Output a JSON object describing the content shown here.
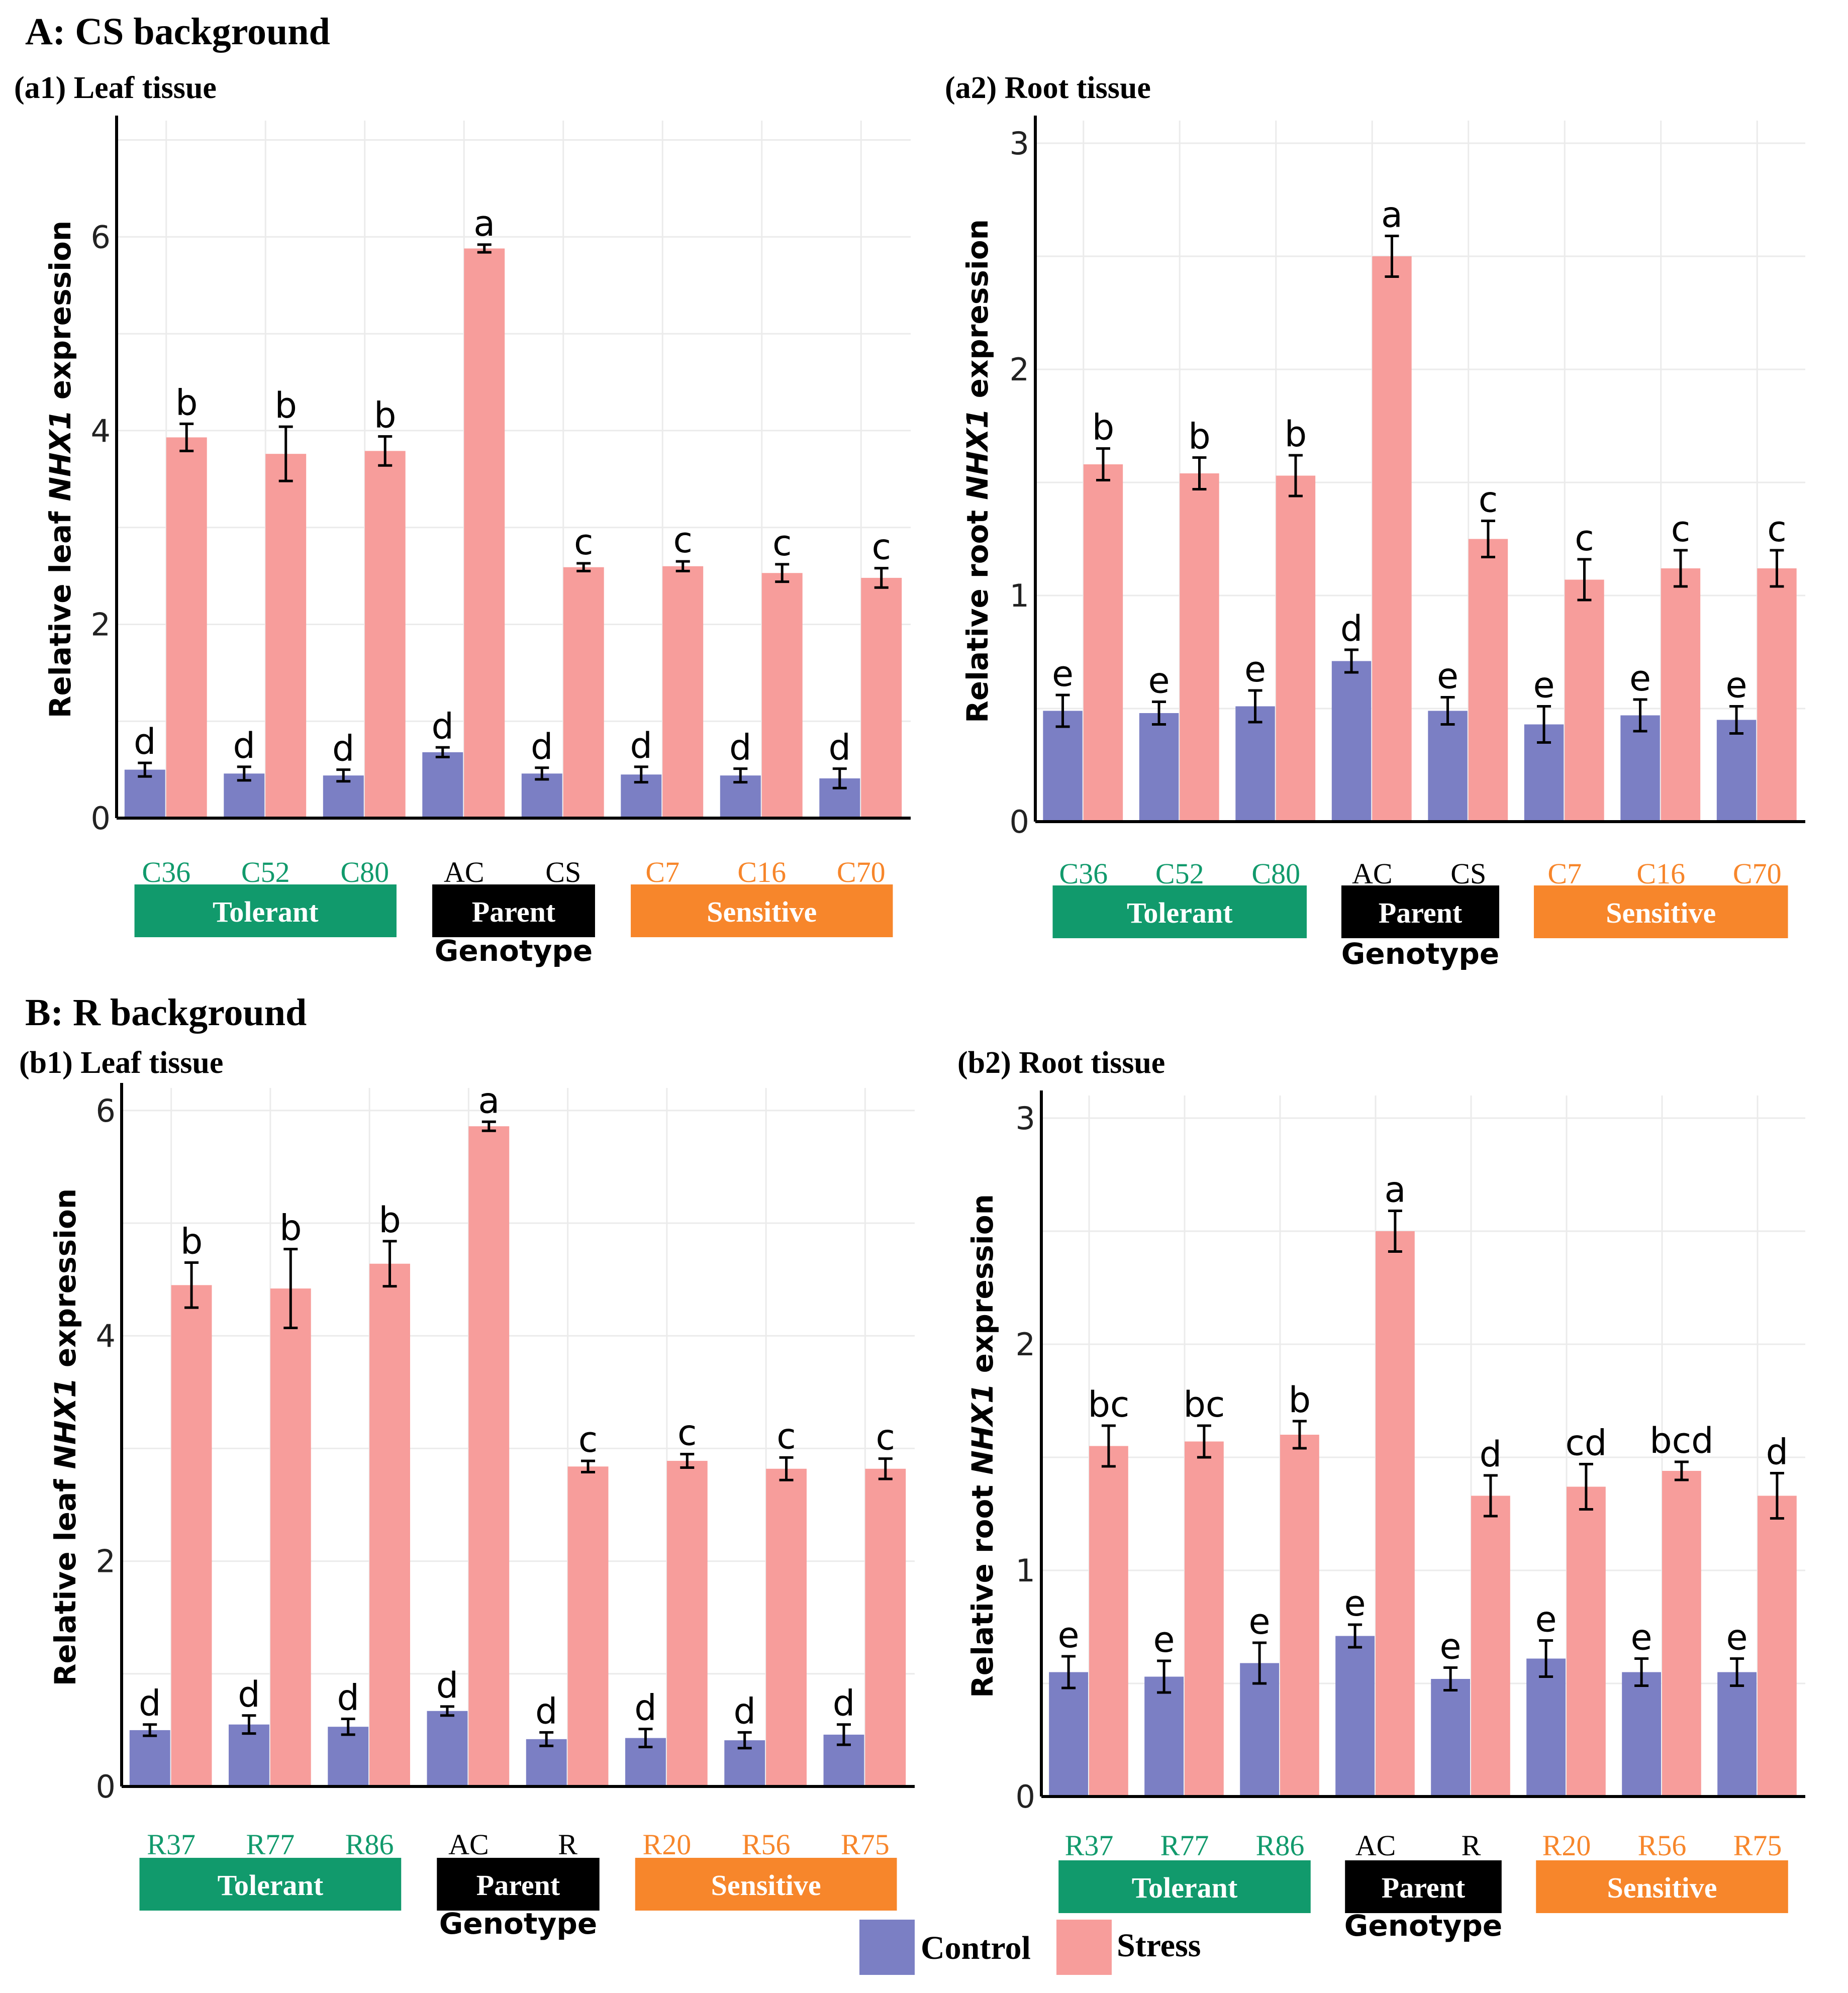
{
  "figure": {
    "section_a_title": "A: CS background",
    "section_b_title": "B: R background",
    "genotype_label": "Genotype",
    "legend": {
      "control_label": "Control",
      "stress_label": "Stress",
      "control_color": "#7b7fc4",
      "stress_color": "#f79d9b"
    },
    "group_colors": {
      "tolerant": "#119a6c",
      "parent": "#000000",
      "sensitive": "#f7862b"
    },
    "group_labels": {
      "tolerant": "Tolerant",
      "parent": "Parent",
      "sensitive": "Sensitive"
    }
  },
  "chart_data": [
    {
      "id": "a1",
      "type": "bar",
      "title": "(a1) Leaf tissue",
      "ylabel_prefix": "Relative leaf ",
      "ylabel_gene": "NHX1",
      "ylabel_suffix": " expression",
      "xlabel": "Genotype",
      "ylim": [
        0,
        7.2
      ],
      "yticks": [
        0,
        2,
        4,
        6
      ],
      "categories": [
        "C36",
        "C52",
        "C80",
        "AC",
        "CS",
        "C7",
        "C16",
        "C70"
      ],
      "category_groups": [
        "tolerant",
        "tolerant",
        "tolerant",
        "parent",
        "parent",
        "sensitive",
        "sensitive",
        "sensitive"
      ],
      "series": [
        {
          "name": "Control",
          "values": [
            0.5,
            0.46,
            0.44,
            0.68,
            0.46,
            0.45,
            0.44,
            0.41
          ],
          "errors": [
            0.07,
            0.07,
            0.06,
            0.05,
            0.06,
            0.08,
            0.07,
            0.1
          ],
          "letters": [
            "d",
            "d",
            "d",
            "d",
            "d",
            "d",
            "d",
            "d"
          ]
        },
        {
          "name": "Stress",
          "values": [
            3.93,
            3.76,
            3.79,
            5.88,
            2.59,
            2.6,
            2.53,
            2.48
          ],
          "errors": [
            0.14,
            0.28,
            0.15,
            0.04,
            0.04,
            0.05,
            0.09,
            0.1
          ],
          "letters": [
            "b",
            "b",
            "b",
            "a",
            "c",
            "c",
            "c",
            "c"
          ]
        }
      ]
    },
    {
      "id": "a2",
      "type": "bar",
      "title": "(a2) Root tissue",
      "ylabel_prefix": "Relative root ",
      "ylabel_gene": "NHX1",
      "ylabel_suffix": " expression",
      "xlabel": "Genotype",
      "ylim": [
        0,
        3.1
      ],
      "yticks": [
        0,
        1,
        2,
        3
      ],
      "categories": [
        "C36",
        "C52",
        "C80",
        "AC",
        "CS",
        "C7",
        "C16",
        "C70"
      ],
      "category_groups": [
        "tolerant",
        "tolerant",
        "tolerant",
        "parent",
        "parent",
        "sensitive",
        "sensitive",
        "sensitive"
      ],
      "series": [
        {
          "name": "Control",
          "values": [
            0.49,
            0.48,
            0.51,
            0.71,
            0.49,
            0.43,
            0.47,
            0.45
          ],
          "errors": [
            0.07,
            0.05,
            0.07,
            0.05,
            0.06,
            0.08,
            0.07,
            0.06
          ],
          "letters": [
            "e",
            "e",
            "e",
            "d",
            "e",
            "e",
            "e",
            "e"
          ]
        },
        {
          "name": "Stress",
          "values": [
            1.58,
            1.54,
            1.53,
            2.5,
            1.25,
            1.07,
            1.12,
            1.12
          ],
          "errors": [
            0.07,
            0.07,
            0.09,
            0.09,
            0.08,
            0.09,
            0.08,
            0.08
          ],
          "letters": [
            "b",
            "b",
            "b",
            "a",
            "c",
            "c",
            "c",
            "c"
          ]
        }
      ]
    },
    {
      "id": "b1",
      "type": "bar",
      "title": "(b1) Leaf tissue",
      "ylabel_prefix": "Relative leaf ",
      "ylabel_gene": "NHX1",
      "ylabel_suffix": " expression",
      "xlabel": "Genotype",
      "ylim": [
        0,
        6.2
      ],
      "yticks": [
        0,
        2,
        4,
        6
      ],
      "categories": [
        "R37",
        "R77",
        "R86",
        "AC",
        "R",
        "R20",
        "R56",
        "R75"
      ],
      "category_groups": [
        "tolerant",
        "tolerant",
        "tolerant",
        "parent",
        "parent",
        "sensitive",
        "sensitive",
        "sensitive"
      ],
      "series": [
        {
          "name": "Control",
          "values": [
            0.5,
            0.55,
            0.53,
            0.67,
            0.42,
            0.43,
            0.41,
            0.46
          ],
          "errors": [
            0.05,
            0.08,
            0.07,
            0.04,
            0.06,
            0.08,
            0.07,
            0.09
          ],
          "letters": [
            "d",
            "d",
            "d",
            "d",
            "d",
            "d",
            "d",
            "d"
          ]
        },
        {
          "name": "Stress",
          "values": [
            4.45,
            4.42,
            4.64,
            5.86,
            2.84,
            2.89,
            2.82,
            2.82
          ],
          "errors": [
            0.2,
            0.35,
            0.2,
            0.04,
            0.05,
            0.06,
            0.1,
            0.09
          ],
          "letters": [
            "b",
            "b",
            "b",
            "a",
            "c",
            "c",
            "c",
            "c"
          ]
        }
      ]
    },
    {
      "id": "b2",
      "type": "bar",
      "title": "(b2) Root tissue",
      "ylabel_prefix": "Relative root ",
      "ylabel_gene": "NHX1",
      "ylabel_suffix": " expression",
      "xlabel": "Genotype",
      "ylim": [
        0,
        3.1
      ],
      "yticks": [
        0,
        1,
        2,
        3
      ],
      "categories": [
        "R37",
        "R77",
        "R86",
        "AC",
        "R",
        "R20",
        "R56",
        "R75"
      ],
      "category_groups": [
        "tolerant",
        "tolerant",
        "tolerant",
        "parent",
        "parent",
        "sensitive",
        "sensitive",
        "sensitive"
      ],
      "series": [
        {
          "name": "Control",
          "values": [
            0.55,
            0.53,
            0.59,
            0.71,
            0.52,
            0.61,
            0.55,
            0.55
          ],
          "errors": [
            0.07,
            0.07,
            0.09,
            0.05,
            0.05,
            0.08,
            0.06,
            0.06
          ],
          "letters": [
            "e",
            "e",
            "e",
            "e",
            "e",
            "e",
            "e",
            "e"
          ]
        },
        {
          "name": "Stress",
          "values": [
            1.55,
            1.57,
            1.6,
            2.5,
            1.33,
            1.37,
            1.44,
            1.33
          ],
          "errors": [
            0.09,
            0.07,
            0.06,
            0.09,
            0.09,
            0.1,
            0.04,
            0.1
          ],
          "letters": [
            "bc",
            "bc",
            "b",
            "a",
            "d",
            "cd",
            "bcd",
            "d"
          ]
        }
      ]
    }
  ]
}
